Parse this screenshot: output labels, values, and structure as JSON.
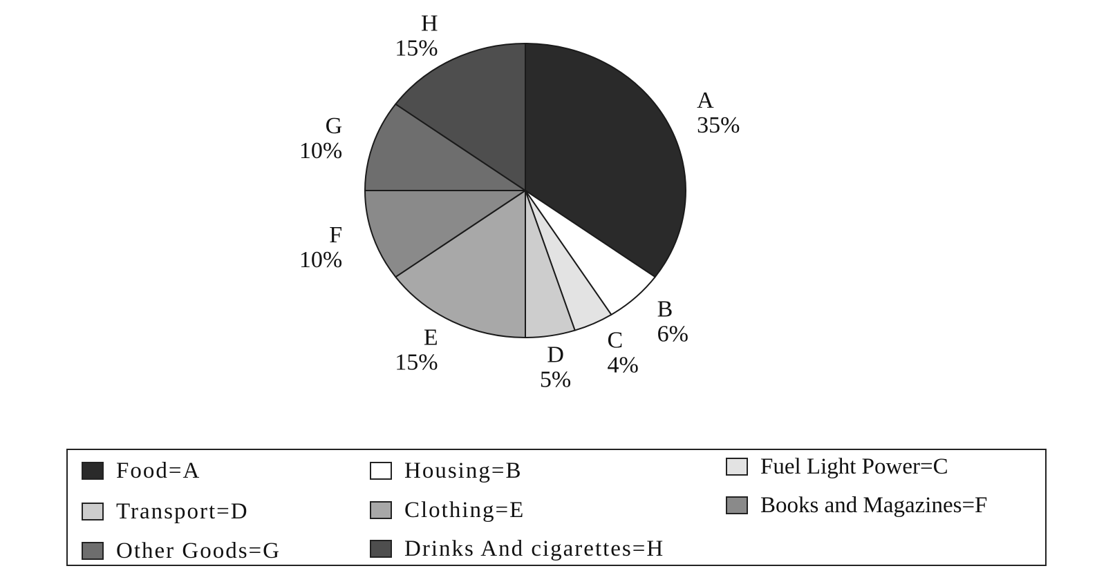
{
  "chart_data": {
    "type": "pie",
    "slices": [
      {
        "letter": "A",
        "value": 35,
        "label": "35%",
        "color": "#2a2a2a",
        "legend": "Food=A"
      },
      {
        "letter": "B",
        "value": 6,
        "label": "6%",
        "color": "#ffffff",
        "legend": "Housing=B"
      },
      {
        "letter": "C",
        "value": 4,
        "label": "4%",
        "color": "#e3e3e3",
        "legend": "Fuel Light Power=C"
      },
      {
        "letter": "D",
        "value": 5,
        "label": "5%",
        "color": "#cdcdcd",
        "legend": "Transport=D"
      },
      {
        "letter": "E",
        "value": 15,
        "label": "15%",
        "color": "#a8a8a8",
        "legend": "Clothing=E"
      },
      {
        "letter": "F",
        "value": 10,
        "label": "10%",
        "color": "#8a8a8a",
        "legend": "Books and Magazines=F"
      },
      {
        "letter": "G",
        "value": 10,
        "label": "10%",
        "color": "#6e6e6e",
        "legend": "Other Goods=G"
      },
      {
        "letter": "H",
        "value": 15,
        "label": "15%",
        "color": "#4e4e4e",
        "legend": "Drinks And cigarettes=H"
      }
    ],
    "legend_position": "bottom"
  }
}
